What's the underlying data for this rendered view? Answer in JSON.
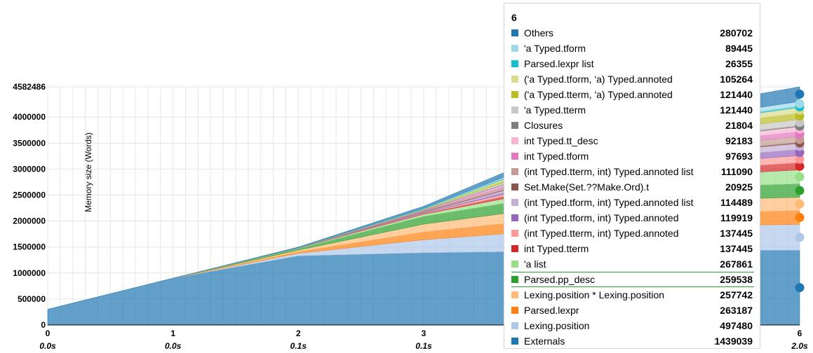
{
  "chart_data": {
    "type": "area",
    "ylabel": "Memory size (Words)",
    "ylim": [
      0,
      4582486
    ],
    "y_ticks": [
      "4582486",
      "4000000",
      "3500000",
      "3000000",
      "2500000",
      "2000000",
      "1500000",
      "1000000",
      "500000",
      "0"
    ],
    "x": [
      0,
      1,
      2,
      3,
      4,
      5,
      6
    ],
    "x_tick_labels": [
      "0",
      "1",
      "2",
      "3",
      "6"
    ],
    "time_labels": [
      "0.0s",
      "0.0s",
      "0.1s",
      "0.1s",
      "2.0s"
    ],
    "x_ticks_shown": [
      0,
      1,
      2,
      3,
      6
    ],
    "time_ticks_shown": [
      0,
      1,
      2,
      3,
      6
    ],
    "series_order_bottom_to_top": [
      "Externals",
      "Lexing.position",
      "Parsed.lexpr",
      "Lexing.position * Lexing.position",
      "Parsed.pp_desc",
      "'a list",
      "int Typed.tterm",
      "(int Typed.tterm, int) Typed.annoted",
      "(int Typed.tform, int) Typed.annoted",
      "(int Typed.tform, int) Typed.annoted list",
      "Set.Make(Set.??Make.Ord).t",
      "(int Typed.tterm, int) Typed.annoted list",
      "int Typed.tform",
      "int Typed.tt_desc",
      "Closures",
      "'a Typed.tterm",
      "('a Typed.tterm, 'a) Typed.annoted",
      "('a Typed.tform, 'a) Typed.annoted",
      "Parsed.lexpr list",
      "'a Typed.tform",
      "Others"
    ],
    "series": [
      {
        "name": "Externals",
        "color": "#1f77b4",
        "values": [
          300000,
          900000,
          1330000,
          1390000,
          1420000,
          1430000,
          1439039
        ]
      },
      {
        "name": "Lexing.position",
        "color": "#aec7e8",
        "values": [
          0,
          0,
          50000,
          250000,
          400000,
          470000,
          497480
        ]
      },
      {
        "name": "Parsed.lexpr",
        "color": "#ff7f0e",
        "values": [
          0,
          0,
          30000,
          150000,
          220000,
          250000,
          263187
        ]
      },
      {
        "name": "Lexing.position * Lexing.position",
        "color": "#ffbb78",
        "values": [
          0,
          0,
          30000,
          150000,
          220000,
          245000,
          257742
        ]
      },
      {
        "name": "Parsed.pp_desc",
        "color": "#2ca02c",
        "values": [
          0,
          0,
          30000,
          150000,
          220000,
          245000,
          259538
        ]
      },
      {
        "name": "'a list",
        "color": "#98df8a",
        "values": [
          0,
          0,
          10000,
          40000,
          120000,
          220000,
          267861
        ]
      },
      {
        "name": "int Typed.tterm",
        "color": "#d62728",
        "values": [
          0,
          0,
          0,
          10000,
          60000,
          110000,
          137445
        ]
      },
      {
        "name": "(int Typed.tterm, int) Typed.annoted",
        "color": "#ff9896",
        "values": [
          0,
          0,
          0,
          10000,
          60000,
          110000,
          137445
        ]
      },
      {
        "name": "(int Typed.tform, int) Typed.annoted",
        "color": "#9467bd",
        "values": [
          0,
          0,
          0,
          10000,
          50000,
          100000,
          119919
        ]
      },
      {
        "name": "(int Typed.tform, int) Typed.annoted list",
        "color": "#c5b0d5",
        "values": [
          0,
          0,
          0,
          10000,
          50000,
          95000,
          114489
        ]
      },
      {
        "name": "Set.Make(Set.??Make.Ord).t",
        "color": "#8c564b",
        "values": [
          0,
          0,
          5000,
          15000,
          18000,
          20000,
          20925
        ]
      },
      {
        "name": "(int Typed.tterm, int) Typed.annoted list",
        "color": "#c49c94",
        "values": [
          0,
          0,
          0,
          10000,
          50000,
          95000,
          111090
        ]
      },
      {
        "name": "int Typed.tform",
        "color": "#e377c2",
        "values": [
          0,
          0,
          0,
          5000,
          40000,
          80000,
          97693
        ]
      },
      {
        "name": "int Typed.tt_desc",
        "color": "#f7b6d2",
        "values": [
          0,
          0,
          0,
          5000,
          40000,
          75000,
          92183
        ]
      },
      {
        "name": "Closures",
        "color": "#7f7f7f",
        "values": [
          0,
          0,
          2000,
          10000,
          15000,
          20000,
          21804
        ]
      },
      {
        "name": "'a Typed.tterm",
        "color": "#c7c7c7",
        "values": [
          0,
          0,
          0,
          5000,
          50000,
          100000,
          121440
        ]
      },
      {
        "name": "('a Typed.tterm, 'a) Typed.annoted",
        "color": "#bcbd22",
        "values": [
          0,
          0,
          0,
          5000,
          50000,
          100000,
          121440
        ]
      },
      {
        "name": "('a Typed.tform, 'a) Typed.annoted",
        "color": "#dbdb8d",
        "values": [
          0,
          0,
          0,
          5000,
          40000,
          85000,
          105264
        ]
      },
      {
        "name": "Parsed.lexpr list",
        "color": "#17becf",
        "values": [
          0,
          0,
          2000,
          10000,
          18000,
          23000,
          26355
        ]
      },
      {
        "name": "'a Typed.tform",
        "color": "#9edae5",
        "values": [
          0,
          0,
          0,
          5000,
          35000,
          70000,
          89445
        ]
      },
      {
        "name": "Others",
        "color": "#1f77b4",
        "values": [
          0,
          0,
          10000,
          40000,
          120000,
          220000,
          280702
        ]
      }
    ]
  },
  "tooltip": {
    "title": "6",
    "highlighted": "Parsed.pp_desc",
    "rows": [
      {
        "name": "Others",
        "value": "280702",
        "color": "#1f77b4"
      },
      {
        "name": "'a Typed.tform",
        "value": "89445",
        "color": "#9edae5"
      },
      {
        "name": "Parsed.lexpr list",
        "value": "26355",
        "color": "#17becf"
      },
      {
        "name": "('a Typed.tform, 'a) Typed.annoted",
        "value": "105264",
        "color": "#dbdb8d"
      },
      {
        "name": "('a Typed.tterm, 'a) Typed.annoted",
        "value": "121440",
        "color": "#bcbd22"
      },
      {
        "name": "'a Typed.tterm",
        "value": "121440",
        "color": "#c7c7c7"
      },
      {
        "name": "Closures",
        "value": "21804",
        "color": "#7f7f7f"
      },
      {
        "name": "int Typed.tt_desc",
        "value": "92183",
        "color": "#f7b6d2"
      },
      {
        "name": "int Typed.tform",
        "value": "97693",
        "color": "#e377c2"
      },
      {
        "name": "(int Typed.tterm, int) Typed.annoted list",
        "value": "111090",
        "color": "#c49c94"
      },
      {
        "name": "Set.Make(Set.??Make.Ord).t",
        "value": "20925",
        "color": "#8c564b"
      },
      {
        "name": "(int Typed.tform, int) Typed.annoted list",
        "value": "114489",
        "color": "#c5b0d5"
      },
      {
        "name": "(int Typed.tform, int) Typed.annoted",
        "value": "119919",
        "color": "#9467bd"
      },
      {
        "name": "(int Typed.tterm, int) Typed.annoted",
        "value": "137445",
        "color": "#ff9896"
      },
      {
        "name": "int Typed.tterm",
        "value": "137445",
        "color": "#d62728"
      },
      {
        "name": "'a list",
        "value": "267861",
        "color": "#98df8a"
      },
      {
        "name": "Parsed.pp_desc",
        "value": "259538",
        "color": "#2ca02c"
      },
      {
        "name": "Lexing.position * Lexing.position",
        "value": "257742",
        "color": "#ffbb78"
      },
      {
        "name": "Parsed.lexpr",
        "value": "263187",
        "color": "#ff7f0e"
      },
      {
        "name": "Lexing.position",
        "value": "497480",
        "color": "#aec7e8"
      },
      {
        "name": "Externals",
        "value": "1439039",
        "color": "#1f77b4"
      }
    ]
  }
}
